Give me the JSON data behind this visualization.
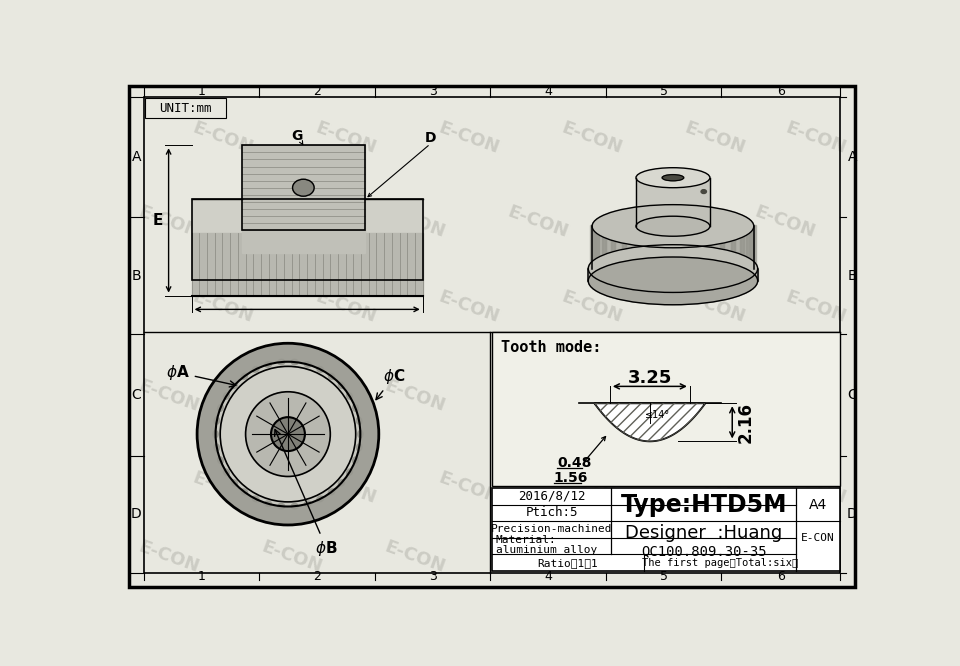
{
  "bg_color": "#e8e8e0",
  "border_color": "#000000",
  "watermark_text": "E-CON",
  "title_box": {
    "date": "2016/8/12",
    "pitch": "Ptich:5",
    "precision": "Precision-machined",
    "material_line1": "Material:",
    "material_line2": "aluminium alloy",
    "type": "Type:HTD5M",
    "designer": "Designer  :Huang",
    "qc": "QC100.809.30-35",
    "size": "A4",
    "company": "E-CON",
    "ratio": "Ratio：1：1",
    "page": "The first page（Total:six）"
  },
  "unit_label": "UNIT:mm",
  "grid_labels_top": [
    "1",
    "2",
    "3",
    "4",
    "5",
    "6"
  ],
  "grid_labels_left": [
    "A",
    "B",
    "C",
    "D"
  ],
  "tooth_mode_label": "Tooth mode:",
  "tooth_dims": {
    "width": "3.25",
    "height": "2.16",
    "base": "0.48",
    "pitch": "1.56",
    "angle": "≤14°"
  }
}
